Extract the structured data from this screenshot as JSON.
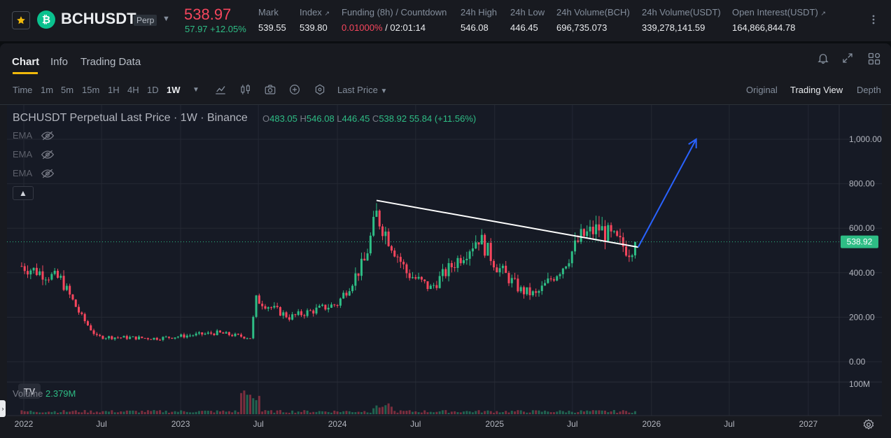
{
  "ticker": {
    "symbol": "BCHUSDT",
    "contract_badge": "Perp",
    "last_price": "538.97",
    "change": "57.97 +12.05%",
    "stats": [
      {
        "label": "Mark",
        "value": "539.55"
      },
      {
        "label": "Index",
        "value": "539.80"
      },
      {
        "label": "Funding (8h) / Countdown",
        "value_rate": "0.01000%",
        "value_countdown": "/ 02:01:14"
      },
      {
        "label": "24h High",
        "value": "546.08"
      },
      {
        "label": "24h Low",
        "value": "446.45"
      },
      {
        "label": "24h Volume(BCH)",
        "value": "696,735.073"
      },
      {
        "label": "24h Volume(USDT)",
        "value": "339,278,141.59"
      },
      {
        "label": "Open Interest(USDT)",
        "value": "164,866,844.78"
      }
    ]
  },
  "tabs": [
    "Chart",
    "Info",
    "Trading Data"
  ],
  "toolbar": {
    "intervals": [
      "Time",
      "1m",
      "5m",
      "15m",
      "1H",
      "4H",
      "1D",
      "1W"
    ],
    "active_interval": "1W",
    "price_type": "Last Price",
    "views": [
      "Original",
      "Trading View",
      "Depth"
    ],
    "active_view": "Trading View"
  },
  "legend": {
    "title": "BCHUSDT Perpetual Last Price · 1W · Binance",
    "o_label": "O",
    "o": "483.05",
    "h_label": "H",
    "h": "546.08",
    "l_label": "L",
    "l": "446.45",
    "c_label": "C",
    "c": "538.92",
    "change": "55.84 (+11.56%)",
    "indicators": [
      "EMA",
      "EMA",
      "EMA"
    ],
    "volume_label": "Volume",
    "volume_value": "2.379M",
    "tv_logo": "TV"
  },
  "chart_data": {
    "type": "candlestick",
    "x_tick_labels": [
      "2022",
      "Jul",
      "2023",
      "Jul",
      "2024",
      "Jul",
      "2025",
      "Jul",
      "2026",
      "Jul",
      "2027"
    ],
    "y_tick_labels": [
      "1,000.00",
      "800.00",
      "600.00",
      "400.00",
      "200.00",
      "0.00"
    ],
    "y_ticks": [
      1000,
      800,
      600,
      400,
      200,
      0
    ],
    "ylim": [
      -30,
      1110
    ],
    "volume_axis_label": "100M",
    "last_price_label": "538.92",
    "last_price": 538.92,
    "series_close_weekly_approx": [
      {
        "date": "2021-12-27",
        "close": 430
      },
      {
        "date": "2022-03-28",
        "close": 370
      },
      {
        "date": "2022-05-16",
        "close": 200
      },
      {
        "date": "2022-06-20",
        "close": 112
      },
      {
        "date": "2022-11-07",
        "close": 105
      },
      {
        "date": "2023-03-27",
        "close": 130
      },
      {
        "date": "2023-06-12",
        "close": 108
      },
      {
        "date": "2023-06-26",
        "close": 280
      },
      {
        "date": "2023-09-11",
        "close": 200
      },
      {
        "date": "2024-01-01",
        "close": 260
      },
      {
        "date": "2024-03-04",
        "close": 450
      },
      {
        "date": "2024-04-01",
        "close": 660
      },
      {
        "date": "2024-06-10",
        "close": 400
      },
      {
        "date": "2024-08-05",
        "close": 330
      },
      {
        "date": "2024-11-25",
        "close": 560
      },
      {
        "date": "2025-01-06",
        "close": 430
      },
      {
        "date": "2025-03-03",
        "close": 320
      },
      {
        "date": "2025-04-07",
        "close": 300
      },
      {
        "date": "2025-06-09",
        "close": 430
      },
      {
        "date": "2025-07-21",
        "close": 560
      },
      {
        "date": "2025-09-01",
        "close": 600
      },
      {
        "date": "2025-11-10",
        "close": 500
      },
      {
        "date": "2025-11-24",
        "close": 538.92
      }
    ],
    "trendline": [
      {
        "date": "2024-04-01",
        "price": 725
      },
      {
        "date": "2025-12-01",
        "price": 515
      }
    ],
    "projection_arrow": [
      {
        "date": "2025-12-01",
        "price": 515
      },
      {
        "date": "2026-04-15",
        "price": 1000
      }
    ],
    "colors": {
      "up": "#2ebd85",
      "down": "#f6465d",
      "arrow": "#2962ff",
      "trendline": "#ffffff"
    }
  }
}
